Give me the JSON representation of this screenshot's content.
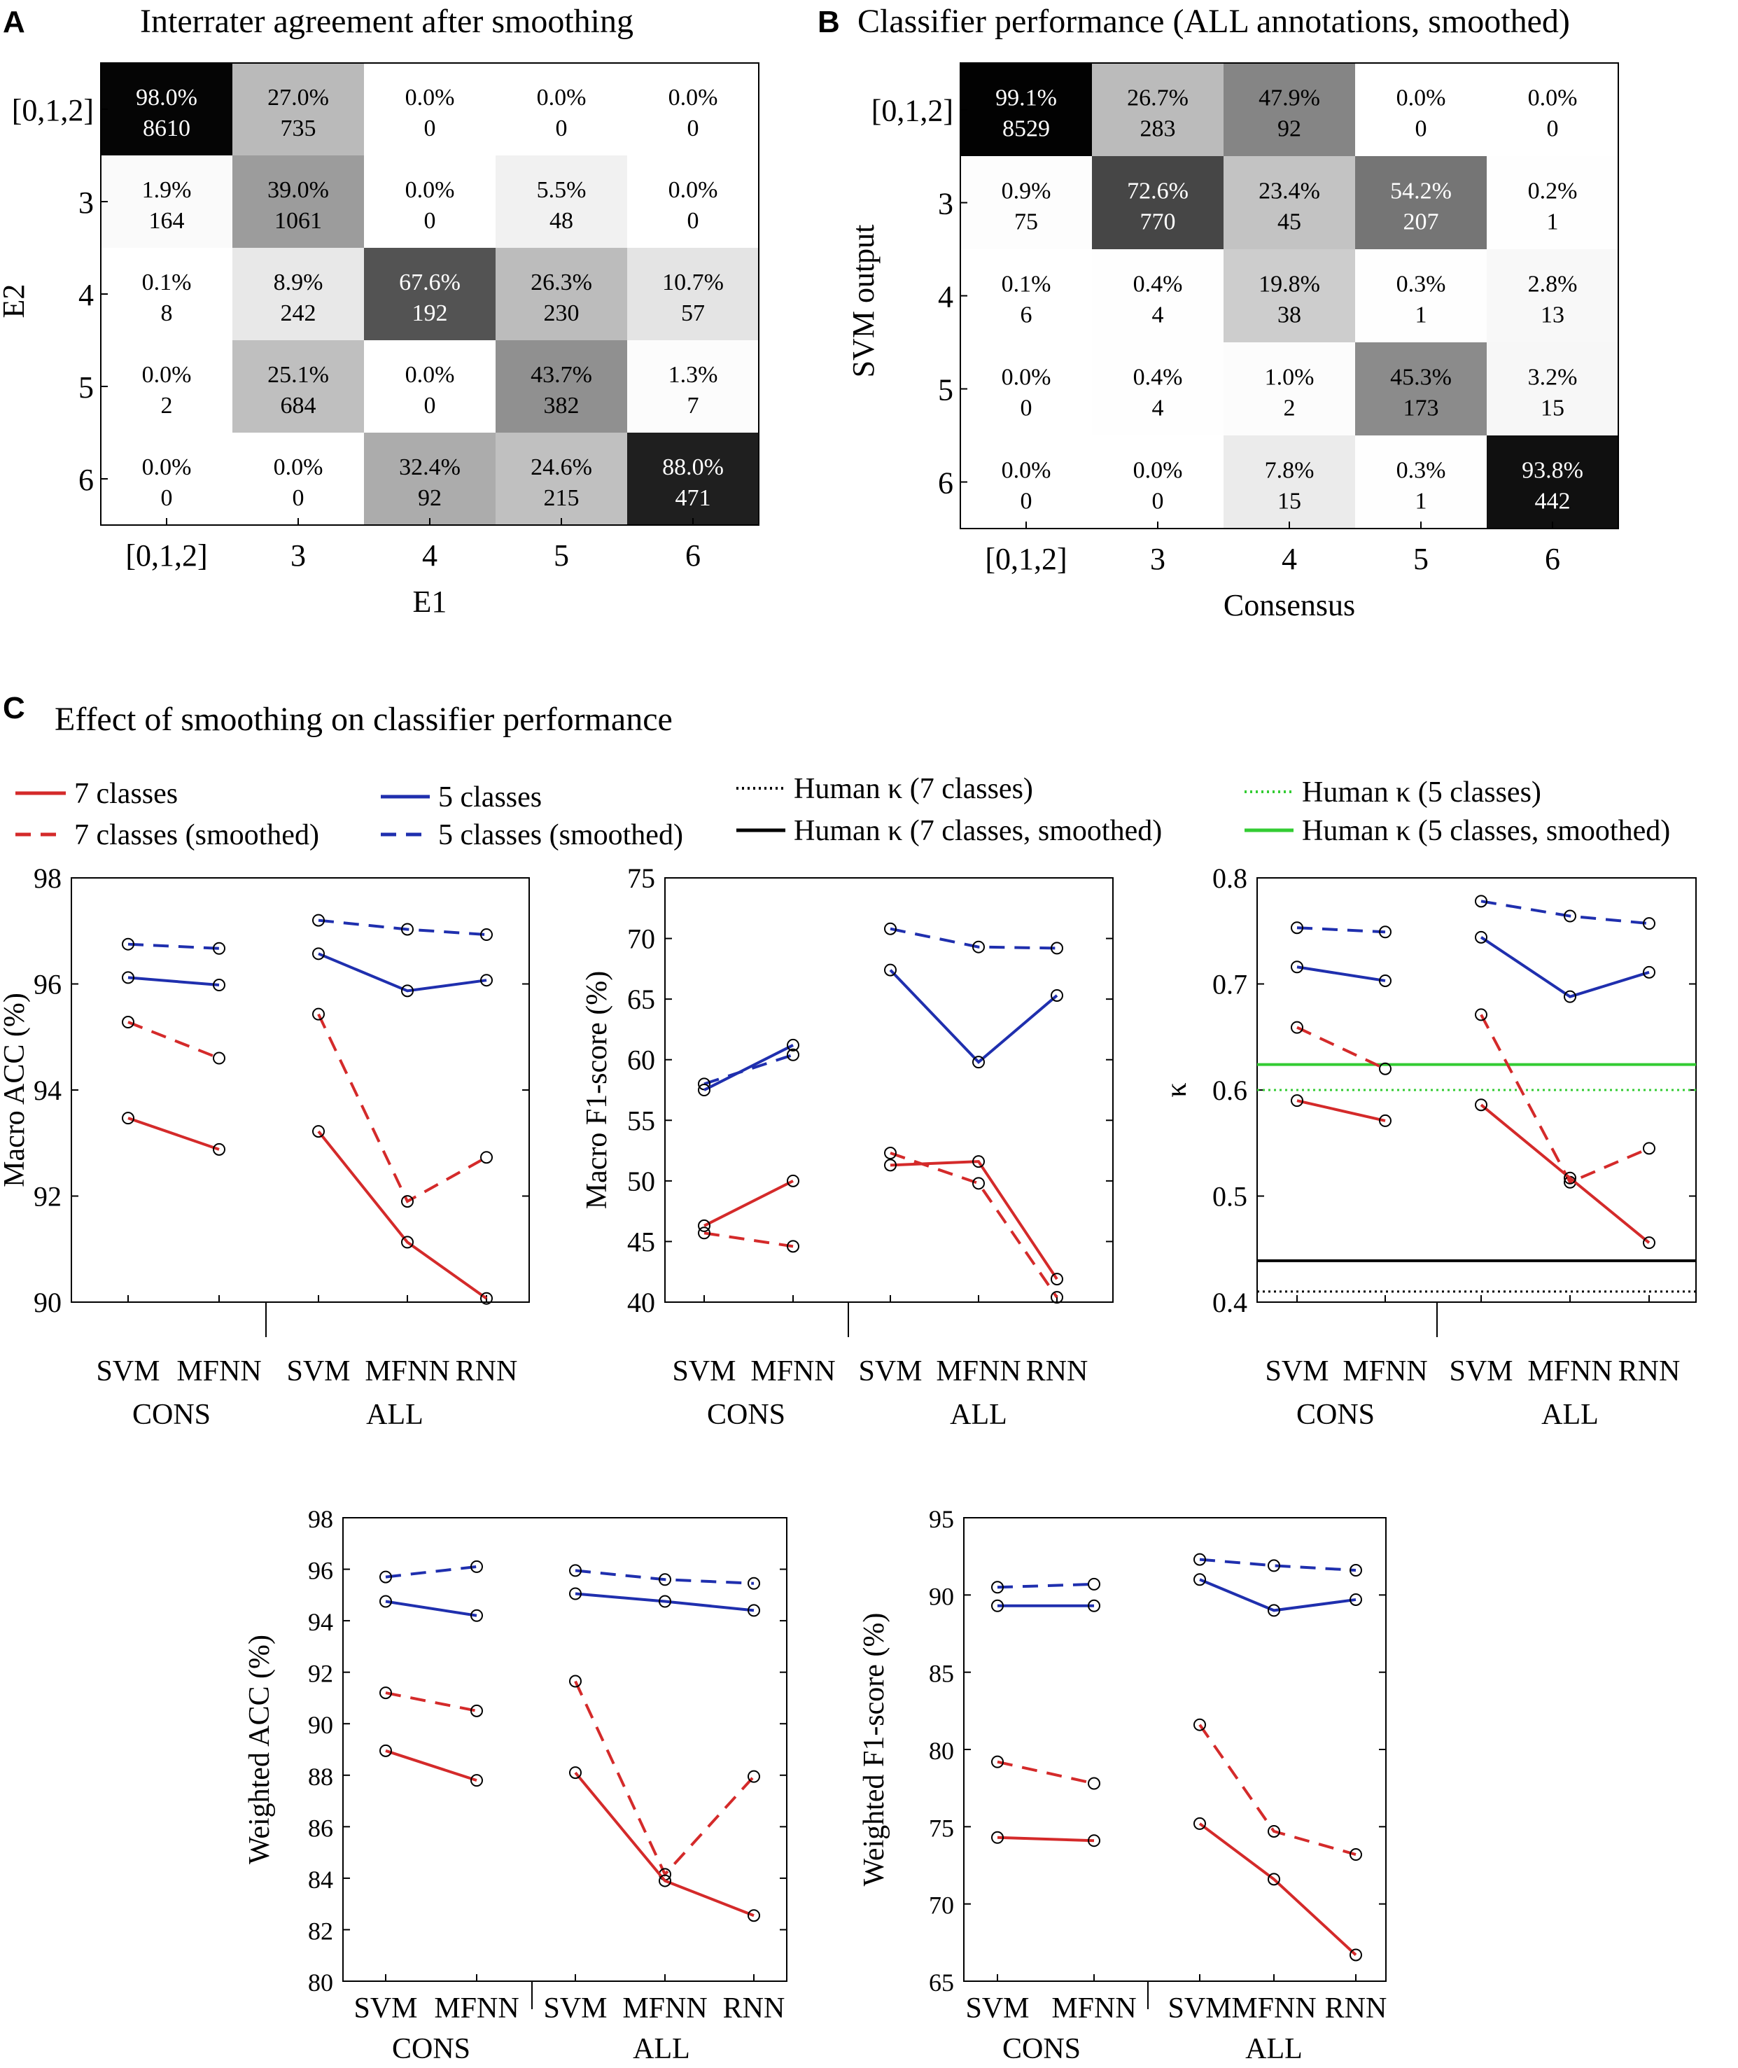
{
  "panels": {
    "A": {
      "letter": "A",
      "title": "Interrater agreement after smoothing"
    },
    "B": {
      "letter": "B",
      "title": "Classifier performance (ALL annotations, smoothed)"
    },
    "C": {
      "letter": "C",
      "title": "Effect of smoothing on classifier performance"
    }
  },
  "colors": {
    "red": "#d42a2a",
    "blue": "#1f2fae",
    "green": "#33cc33",
    "black": "#000000"
  },
  "legend": [
    {
      "label": "7 classes",
      "color": "#d42a2a",
      "dash": "solid"
    },
    {
      "label": "7 classes (smoothed)",
      "color": "#d42a2a",
      "dash": "dashed"
    },
    {
      "label": "5 classes",
      "color": "#1f2fae",
      "dash": "solid"
    },
    {
      "label": "5 classes (smoothed)",
      "color": "#1f2fae",
      "dash": "dashed"
    },
    {
      "label": "Human κ (7 classes)",
      "color": "#000000",
      "dash": "dotted"
    },
    {
      "label": "Human κ (7 classes, smoothed)",
      "color": "#000000",
      "dash": "solid"
    },
    {
      "label": "Human κ (5 classes)",
      "color": "#33cc33",
      "dash": "dotted"
    },
    {
      "label": "Human κ (5 classes, smoothed)",
      "color": "#33cc33",
      "dash": "solid"
    }
  ],
  "chart_data": [
    {
      "type": "heatmap",
      "id": "A",
      "title": "Interrater agreement after smoothing",
      "xlabel": "E1",
      "ylabel": "E2",
      "col_labels": [
        "[0,1,2]",
        "3",
        "4",
        "5",
        "6"
      ],
      "row_labels": [
        "[0,1,2]",
        "3",
        "4",
        "5",
        "6"
      ],
      "percent": [
        [
          "98.0%",
          "27.0%",
          "0.0%",
          "0.0%",
          "0.0%"
        ],
        [
          "1.9%",
          "39.0%",
          "0.0%",
          "5.5%",
          "0.0%"
        ],
        [
          "0.1%",
          "8.9%",
          "67.6%",
          "26.3%",
          "10.7%"
        ],
        [
          "0.0%",
          "25.1%",
          "0.0%",
          "43.7%",
          "1.3%"
        ],
        [
          "0.0%",
          "0.0%",
          "32.4%",
          "24.6%",
          "88.0%"
        ]
      ],
      "counts": [
        [
          "8610",
          "735",
          "0",
          "0",
          "0"
        ],
        [
          "164",
          "1061",
          "0",
          "48",
          "0"
        ],
        [
          "8",
          "242",
          "192",
          "230",
          "57"
        ],
        [
          "2",
          "684",
          "0",
          "382",
          "7"
        ],
        [
          "0",
          "0",
          "92",
          "215",
          "471"
        ]
      ]
    },
    {
      "type": "heatmap",
      "id": "B",
      "title": "Classifier performance (ALL annotations, smoothed)",
      "xlabel": "Consensus",
      "ylabel": "SVM output",
      "col_labels": [
        "[0,1,2]",
        "3",
        "4",
        "5",
        "6"
      ],
      "row_labels": [
        "[0,1,2]",
        "3",
        "4",
        "5",
        "6"
      ],
      "percent": [
        [
          "99.1%",
          "26.7%",
          "47.9%",
          "0.0%",
          "0.0%"
        ],
        [
          "0.9%",
          "72.6%",
          "23.4%",
          "54.2%",
          "0.2%"
        ],
        [
          "0.1%",
          "0.4%",
          "19.8%",
          "0.3%",
          "2.8%"
        ],
        [
          "0.0%",
          "0.4%",
          "1.0%",
          "45.3%",
          "3.2%"
        ],
        [
          "0.0%",
          "0.0%",
          "7.8%",
          "0.3%",
          "93.8%"
        ]
      ],
      "counts": [
        [
          "8529",
          "283",
          "92",
          "0",
          "0"
        ],
        [
          "75",
          "770",
          "45",
          "207",
          "1"
        ],
        [
          "6",
          "4",
          "38",
          "1",
          "13"
        ],
        [
          "0",
          "4",
          "2",
          "173",
          "15"
        ],
        [
          "0",
          "0",
          "15",
          "1",
          "442"
        ]
      ]
    },
    {
      "type": "line",
      "id": "macro-acc",
      "ylabel": "Macro ACC (%)",
      "ylim": [
        90,
        98
      ],
      "yticks": [
        "90",
        "92",
        "94",
        "96",
        "98"
      ],
      "groups": [
        {
          "label": "CONS",
          "methods": [
            "SVM",
            "MFNN"
          ]
        },
        {
          "label": "ALL",
          "methods": [
            "SVM",
            "MFNN",
            "RNN"
          ]
        }
      ],
      "series": [
        {
          "name": "5 classes (smoothed)",
          "cons": [
            96.75,
            96.67
          ],
          "all": [
            97.2,
            97.03,
            96.93
          ]
        },
        {
          "name": "5 classes",
          "cons": [
            96.12,
            95.98
          ],
          "all": [
            96.57,
            95.87,
            96.07
          ]
        },
        {
          "name": "7 classes (smoothed)",
          "cons": [
            95.28,
            94.6
          ],
          "all": [
            95.43,
            91.9,
            92.73
          ]
        },
        {
          "name": "7 classes",
          "cons": [
            93.47,
            92.88
          ],
          "all": [
            93.22,
            91.13,
            90.07
          ]
        }
      ],
      "hlines": []
    },
    {
      "type": "line",
      "id": "macro-f1",
      "ylabel": "Macro F1-score (%)",
      "ylim": [
        40,
        75
      ],
      "yticks": [
        "40",
        "45",
        "50",
        "55",
        "60",
        "65",
        "70",
        "75"
      ],
      "groups": [
        {
          "label": "CONS",
          "methods": [
            "SVM",
            "MFNN"
          ]
        },
        {
          "label": "ALL",
          "methods": [
            "SVM",
            "MFNN",
            "RNN"
          ]
        }
      ],
      "series": [
        {
          "name": "5 classes (smoothed)",
          "cons": [
            58.0,
            60.4
          ],
          "all": [
            70.8,
            69.3,
            69.2
          ]
        },
        {
          "name": "5 classes",
          "cons": [
            57.5,
            61.2
          ],
          "all": [
            67.4,
            59.8,
            65.3
          ]
        },
        {
          "name": "7 classes (smoothed)",
          "cons": [
            45.7,
            44.6
          ],
          "all": [
            52.3,
            49.8,
            40.4
          ]
        },
        {
          "name": "7 classes",
          "cons": [
            46.3,
            50.0
          ],
          "all": [
            51.3,
            51.6,
            41.9
          ]
        }
      ],
      "hlines": []
    },
    {
      "type": "line",
      "id": "kappa",
      "ylabel": "κ",
      "ylim": [
        0.4,
        0.8
      ],
      "yticks": [
        "0.4",
        "0.5",
        "0.6",
        "0.7",
        "0.8"
      ],
      "groups": [
        {
          "label": "CONS",
          "methods": [
            "SVM",
            "MFNN"
          ]
        },
        {
          "label": "ALL",
          "methods": [
            "SVM",
            "MFNN",
            "RNN"
          ]
        }
      ],
      "series": [
        {
          "name": "5 classes (smoothed)",
          "cons": [
            0.753,
            0.749
          ],
          "all": [
            0.778,
            0.764,
            0.757
          ]
        },
        {
          "name": "5 classes",
          "cons": [
            0.716,
            0.703
          ],
          "all": [
            0.744,
            0.688,
            0.711
          ]
        },
        {
          "name": "7 classes (smoothed)",
          "cons": [
            0.659,
            0.62
          ],
          "all": [
            0.671,
            0.513,
            0.545
          ]
        },
        {
          "name": "7 classes",
          "cons": [
            0.59,
            0.571
          ],
          "all": [
            0.586,
            0.517,
            0.456
          ]
        }
      ],
      "hlines": [
        {
          "name": "Human κ (5 classes, smoothed)",
          "value": 0.624
        },
        {
          "name": "Human κ (5 classes)",
          "value": 0.6
        },
        {
          "name": "Human κ (7 classes, smoothed)",
          "value": 0.439
        },
        {
          "name": "Human κ (7 classes)",
          "value": 0.41
        }
      ]
    },
    {
      "type": "line",
      "id": "weighted-acc",
      "ylabel": "Weighted ACC (%)",
      "ylim": [
        80,
        98
      ],
      "yticks": [
        "80",
        "82",
        "84",
        "86",
        "88",
        "90",
        "92",
        "94",
        "96",
        "98"
      ],
      "groups": [
        {
          "label": "CONS",
          "methods": [
            "SVM",
            "MFNN"
          ]
        },
        {
          "label": "ALL",
          "methods": [
            "SVM",
            "MFNN",
            "RNN"
          ]
        }
      ],
      "series": [
        {
          "name": "5 classes (smoothed)",
          "cons": [
            95.7,
            96.1
          ],
          "all": [
            95.95,
            95.6,
            95.45
          ]
        },
        {
          "name": "5 classes",
          "cons": [
            94.75,
            94.2
          ],
          "all": [
            95.05,
            94.75,
            94.4
          ]
        },
        {
          "name": "7 classes (smoothed)",
          "cons": [
            91.2,
            90.5
          ],
          "all": [
            91.65,
            84.15,
            87.95
          ]
        },
        {
          "name": "7 classes",
          "cons": [
            88.95,
            87.8
          ],
          "all": [
            88.1,
            83.9,
            82.55
          ]
        }
      ],
      "hlines": []
    },
    {
      "type": "line",
      "id": "weighted-f1",
      "ylabel": "Weighted F1-score (%)",
      "ylim": [
        65,
        95
      ],
      "yticks": [
        "65",
        "70",
        "75",
        "80",
        "85",
        "90",
        "95"
      ],
      "groups": [
        {
          "label": "CONS",
          "methods": [
            "SVM",
            "MFNN"
          ]
        },
        {
          "label": "ALL",
          "methods": [
            "SVM",
            "MFNN",
            "RNN"
          ]
        }
      ],
      "series": [
        {
          "name": "5 classes (smoothed)",
          "cons": [
            90.5,
            90.7
          ],
          "all": [
            92.3,
            91.9,
            91.6
          ]
        },
        {
          "name": "5 classes",
          "cons": [
            89.3,
            89.3
          ],
          "all": [
            91.0,
            89.0,
            89.7
          ]
        },
        {
          "name": "7 classes (smoothed)",
          "cons": [
            79.2,
            77.8
          ],
          "all": [
            81.6,
            74.7,
            73.2
          ]
        },
        {
          "name": "7 classes",
          "cons": [
            74.3,
            74.1
          ],
          "all": [
            75.2,
            71.6,
            66.7
          ]
        }
      ],
      "hlines": []
    }
  ]
}
